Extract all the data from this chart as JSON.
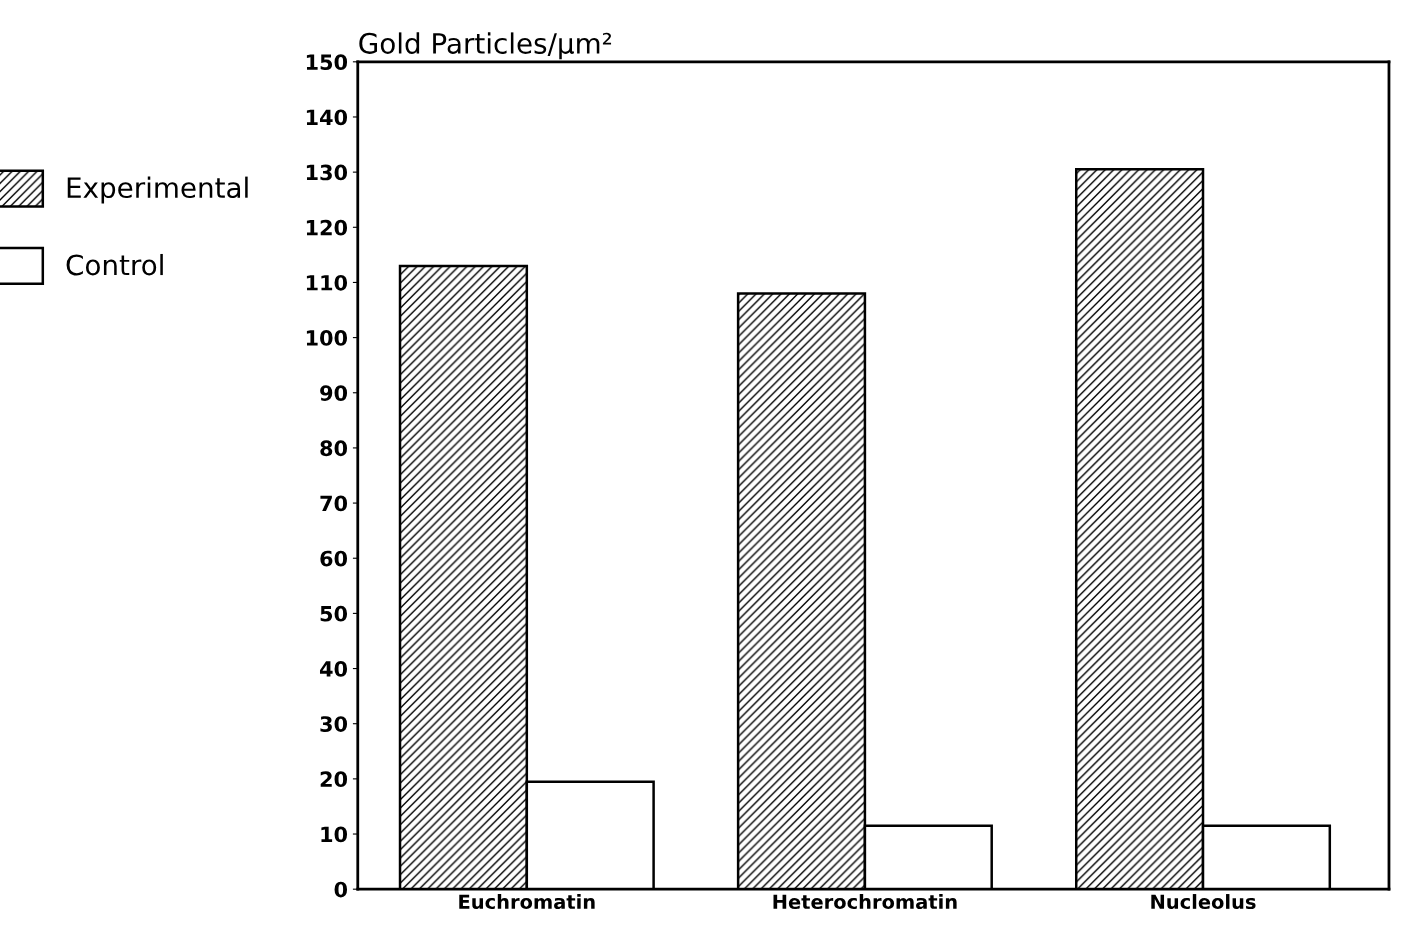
{
  "chart_data": {
    "type": "bar",
    "title": "Gold Particles/µm²",
    "categories": [
      "Euchromatin",
      "Heterochromatin",
      "Nucleolus"
    ],
    "series": [
      {
        "name": "Experimental",
        "color": "#000000",
        "values": [
          113,
          108,
          130.5
        ]
      },
      {
        "name": "Control",
        "color": "#ffffff",
        "values": [
          19.5,
          11.5,
          11.5
        ]
      }
    ],
    "ylim": [
      0,
      150
    ],
    "yticks": [
      0,
      10,
      20,
      30,
      40,
      50,
      60,
      70,
      80,
      90,
      100,
      110,
      120,
      130,
      140,
      150
    ],
    "grid": false,
    "legend": "left"
  }
}
